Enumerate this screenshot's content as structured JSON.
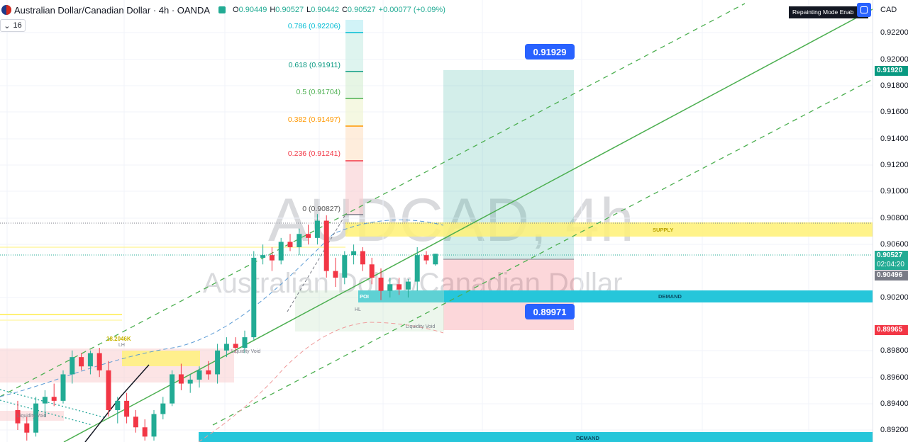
{
  "header": {
    "symbol": "Australian Dollar/Canadian Dollar · 4h · OANDA",
    "o_label": "O",
    "o_value": "0.90449",
    "h_label": "H",
    "h_value": "0.90527",
    "l_label": "L",
    "l_value": "0.90442",
    "c_label": "C",
    "c_value": "0.90527",
    "change": "+0.00077 (+0.09%)",
    "interval_count": "16",
    "currency": "CAD",
    "repaint_badge": "Repainting Mode Enab"
  },
  "watermark": {
    "ticker": "AUDCAD, 4h",
    "name": "Australian Dollar/Canadian Dollar"
  },
  "colors": {
    "up": "#22ab94",
    "down": "#f23645",
    "accent": "#2962ff",
    "channel": "#4caf50",
    "demand": "#26c6da",
    "supply": "#fff176"
  },
  "price_axis": {
    "ticks": [
      "0.92200",
      "0.92000",
      "0.91800",
      "0.91600",
      "0.91400",
      "0.91200",
      "0.91000",
      "0.90800",
      "0.90600",
      "0.90200",
      "0.89800",
      "0.89600",
      "0.89400",
      "0.89200"
    ],
    "target_tag": "0.91920",
    "last_price_tag": "0.90527",
    "countdown_tag": "02:04:20",
    "gray_tag": "0.90496",
    "stop_tag": "0.89965"
  },
  "fib": [
    {
      "label": "0.786 (0.92206)",
      "color": "#00bcd4"
    },
    {
      "label": "0.618 (0.91911)",
      "color": "#089981"
    },
    {
      "label": "0.5 (0.91704)",
      "color": "#4caf50"
    },
    {
      "label": "0.382 (0.91497)",
      "color": "#ff9800"
    },
    {
      "label": "0.236 (0.91241)",
      "color": "#f23645"
    },
    {
      "label": "0 (0.90827)",
      "color": "#787b86"
    }
  ],
  "annotations": {
    "target_callout": "0.91929",
    "stop_callout": "0.89971",
    "supply": "SUPPLY",
    "demand_upper": "DEMAND",
    "demand_lower": "DEMAND",
    "poi": "POI",
    "hl": "HL",
    "lh": "LH",
    "liquidity_void_1": "Liquidity Void",
    "liquidity_void_2": "Liquidity Void",
    "liquidity_void_3": "Liquidity Void",
    "yellow_label": "18.2046K"
  },
  "chart_data": {
    "type": "candlestick",
    "title": "Australian Dollar/Canadian Dollar · 4h · OANDA",
    "ylim": [
      0.8915,
      0.9233
    ],
    "series": [
      {
        "o": 0.8935,
        "h": 0.8942,
        "l": 0.892,
        "c": 0.8925
      },
      {
        "o": 0.8925,
        "h": 0.893,
        "l": 0.8912,
        "c": 0.8918
      },
      {
        "o": 0.8918,
        "h": 0.8945,
        "l": 0.8915,
        "c": 0.894
      },
      {
        "o": 0.894,
        "h": 0.895,
        "l": 0.893,
        "c": 0.8945
      },
      {
        "o": 0.8945,
        "h": 0.8955,
        "l": 0.8938,
        "c": 0.8942
      },
      {
        "o": 0.8942,
        "h": 0.8965,
        "l": 0.894,
        "c": 0.8962
      },
      {
        "o": 0.8962,
        "h": 0.898,
        "l": 0.8955,
        "c": 0.8975
      },
      {
        "o": 0.8975,
        "h": 0.8978,
        "l": 0.8965,
        "c": 0.8968
      },
      {
        "o": 0.8968,
        "h": 0.898,
        "l": 0.8962,
        "c": 0.8978
      },
      {
        "o": 0.8978,
        "h": 0.8982,
        "l": 0.896,
        "c": 0.8965
      },
      {
        "o": 0.8965,
        "h": 0.8972,
        "l": 0.893,
        "c": 0.8935
      },
      {
        "o": 0.8935,
        "h": 0.8945,
        "l": 0.8925,
        "c": 0.8942
      },
      {
        "o": 0.8942,
        "h": 0.8948,
        "l": 0.8925,
        "c": 0.893
      },
      {
        "o": 0.893,
        "h": 0.8935,
        "l": 0.8918,
        "c": 0.8922
      },
      {
        "o": 0.8922,
        "h": 0.8928,
        "l": 0.8912,
        "c": 0.8915
      },
      {
        "o": 0.8915,
        "h": 0.8935,
        "l": 0.8912,
        "c": 0.8932
      },
      {
        "o": 0.8932,
        "h": 0.8945,
        "l": 0.8928,
        "c": 0.894
      },
      {
        "o": 0.894,
        "h": 0.8965,
        "l": 0.8938,
        "c": 0.8962
      },
      {
        "o": 0.8962,
        "h": 0.897,
        "l": 0.895,
        "c": 0.8955
      },
      {
        "o": 0.8955,
        "h": 0.8962,
        "l": 0.8948,
        "c": 0.8958
      },
      {
        "o": 0.8958,
        "h": 0.8968,
        "l": 0.8952,
        "c": 0.8965
      },
      {
        "o": 0.8965,
        "h": 0.8972,
        "l": 0.8958,
        "c": 0.8962
      },
      {
        "o": 0.8962,
        "h": 0.8985,
        "l": 0.8955,
        "c": 0.898
      },
      {
        "o": 0.898,
        "h": 0.899,
        "l": 0.8975,
        "c": 0.8985
      },
      {
        "o": 0.8985,
        "h": 0.899,
        "l": 0.8978,
        "c": 0.8982
      },
      {
        "o": 0.8982,
        "h": 0.8995,
        "l": 0.8978,
        "c": 0.899
      },
      {
        "o": 0.899,
        "h": 0.9055,
        "l": 0.8988,
        "c": 0.905
      },
      {
        "o": 0.905,
        "h": 0.906,
        "l": 0.9045,
        "c": 0.9052
      },
      {
        "o": 0.9052,
        "h": 0.9058,
        "l": 0.904,
        "c": 0.9048
      },
      {
        "o": 0.9048,
        "h": 0.9065,
        "l": 0.9045,
        "c": 0.9062
      },
      {
        "o": 0.9062,
        "h": 0.9068,
        "l": 0.9055,
        "c": 0.9058
      },
      {
        "o": 0.9058,
        "h": 0.9072,
        "l": 0.9052,
        "c": 0.9068
      },
      {
        "o": 0.9068,
        "h": 0.9075,
        "l": 0.906,
        "c": 0.9065
      },
      {
        "o": 0.9065,
        "h": 0.9083,
        "l": 0.906,
        "c": 0.9078
      },
      {
        "o": 0.9078,
        "h": 0.9082,
        "l": 0.9035,
        "c": 0.904
      },
      {
        "o": 0.904,
        "h": 0.905,
        "l": 0.9028,
        "c": 0.9035
      },
      {
        "o": 0.9035,
        "h": 0.9055,
        "l": 0.903,
        "c": 0.9052
      },
      {
        "o": 0.9052,
        "h": 0.906,
        "l": 0.9045,
        "c": 0.9055
      },
      {
        "o": 0.9055,
        "h": 0.9058,
        "l": 0.904,
        "c": 0.9045
      },
      {
        "o": 0.9045,
        "h": 0.905,
        "l": 0.903,
        "c": 0.9035
      },
      {
        "o": 0.9035,
        "h": 0.9042,
        "l": 0.9018,
        "c": 0.9025
      },
      {
        "o": 0.9025,
        "h": 0.9035,
        "l": 0.902,
        "c": 0.903
      },
      {
        "o": 0.903,
        "h": 0.9035,
        "l": 0.9022,
        "c": 0.9026
      },
      {
        "o": 0.9026,
        "h": 0.9034,
        "l": 0.902,
        "c": 0.9032
      },
      {
        "o": 0.9032,
        "h": 0.9058,
        "l": 0.9025,
        "c": 0.9052
      },
      {
        "o": 0.9052,
        "h": 0.9055,
        "l": 0.9045,
        "c": 0.9048
      },
      {
        "o": 0.9045,
        "h": 0.9053,
        "l": 0.9044,
        "c": 0.9053
      }
    ]
  }
}
